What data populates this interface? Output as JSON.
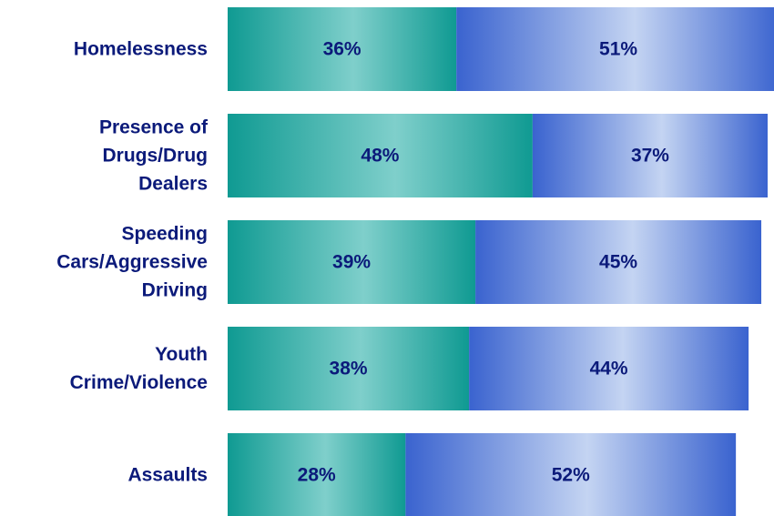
{
  "chart_data": {
    "type": "bar",
    "orientation": "horizontal",
    "stacked": true,
    "categories": [
      [
        "Homelessness"
      ],
      [
        "Presence of",
        "Drugs/Drug",
        "Dealers"
      ],
      [
        "Speeding",
        "Cars/Aggressive",
        "Driving"
      ],
      [
        "Youth",
        "Crime/Violence"
      ],
      [
        "Assaults"
      ]
    ],
    "series": [
      {
        "values": [
          36,
          48,
          39,
          38,
          28
        ],
        "labels": [
          "36%",
          "48%",
          "39%",
          "38%",
          "28%"
        ]
      },
      {
        "values": [
          51,
          37,
          45,
          44,
          52
        ],
        "labels": [
          "51%",
          "37%",
          "45%",
          "44%",
          "52%"
        ]
      }
    ],
    "xlim": [
      0,
      86
    ],
    "grid": false,
    "legend": "none",
    "colors": {
      "series1_light": "#7fcfcb",
      "series1_dark": "#0f9a92",
      "series2_light": "#c4d4f2",
      "series2_dark": "#3a63cf",
      "label": "#0b1a7a"
    }
  }
}
